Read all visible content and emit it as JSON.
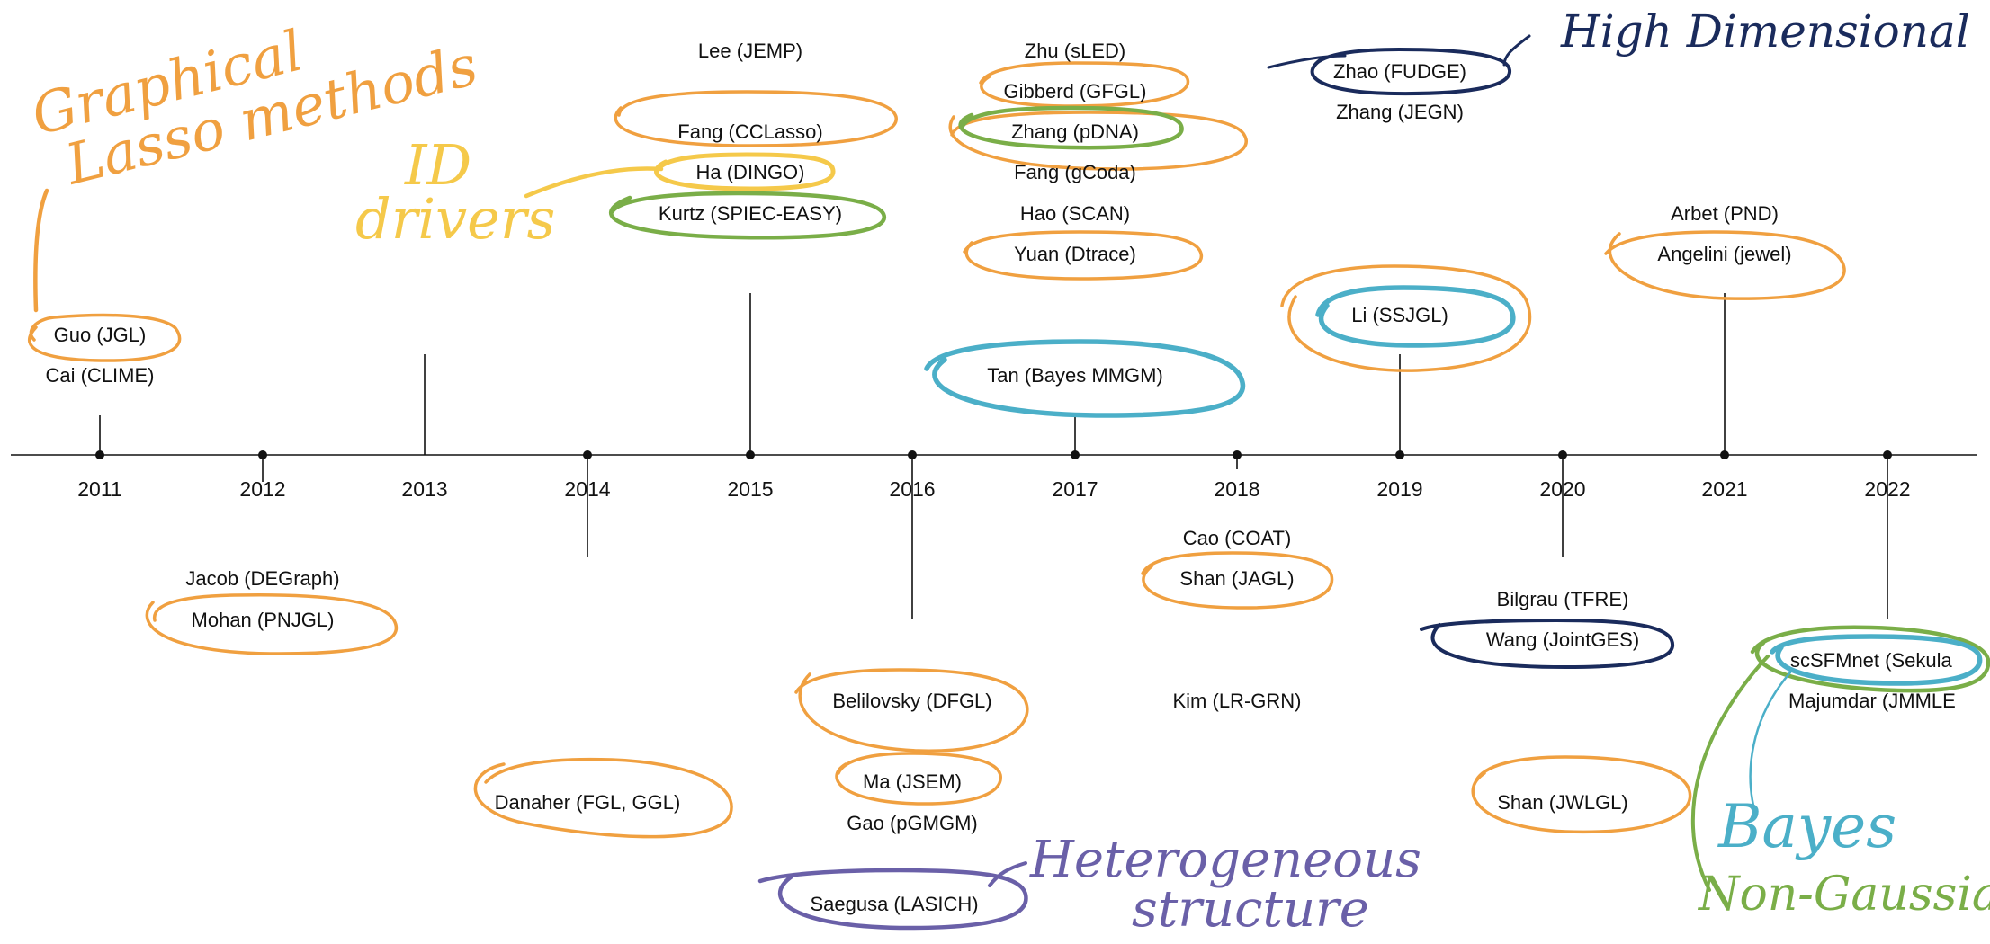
{
  "colors": {
    "graphical_lasso": "#F0A040",
    "id_drivers": "#F5C94A",
    "heterogeneous": "#6A60A8",
    "high_dimensional": "#1A2B5C",
    "bayes": "#4BAFC8",
    "non_gaussian": "#7AAE48",
    "axis": "#111111"
  },
  "years": [
    "2011",
    "2012",
    "2013",
    "2014",
    "2015",
    "2016",
    "2017",
    "2018",
    "2019",
    "2020",
    "2021",
    "2022"
  ],
  "papers": [
    {
      "id": "guo",
      "text": "Guo (JGL)"
    },
    {
      "id": "cai",
      "text": "Cai (CLIME)"
    },
    {
      "id": "jacob",
      "text": "Jacob (DEGraph)"
    },
    {
      "id": "mohan",
      "text": "Mohan (PNJGL)"
    },
    {
      "id": "danaher",
      "text": "Danaher (FGL, GGL)"
    },
    {
      "id": "lee",
      "text": "Lee (JEMP)"
    },
    {
      "id": "fang_cc",
      "text": "Fang (CCLasso)"
    },
    {
      "id": "ha",
      "text": "Ha (DINGO)"
    },
    {
      "id": "kurtz",
      "text": "Kurtz (SPIEC-EASY)"
    },
    {
      "id": "belilovsky",
      "text": "Belilovsky (DFGL)"
    },
    {
      "id": "ma",
      "text": "Ma (JSEM)"
    },
    {
      "id": "gao",
      "text": "Gao (pGMGM)"
    },
    {
      "id": "saegusa",
      "text": "Saegusa (LASICH)"
    },
    {
      "id": "zhu",
      "text": "Zhu (sLED)"
    },
    {
      "id": "gibberd",
      "text": "Gibberd (GFGL)"
    },
    {
      "id": "zhang_p",
      "text": "Zhang (pDNA)"
    },
    {
      "id": "fang_g",
      "text": "Fang (gCoda)"
    },
    {
      "id": "hao",
      "text": "Hao (SCAN)"
    },
    {
      "id": "yuan",
      "text": "Yuan (Dtrace)"
    },
    {
      "id": "tan",
      "text": "Tan (Bayes MMGM)"
    },
    {
      "id": "cao",
      "text": "Cao (COAT)"
    },
    {
      "id": "shan_j",
      "text": "Shan (JAGL)"
    },
    {
      "id": "kim",
      "text": "Kim (LR-GRN)"
    },
    {
      "id": "zhao",
      "text": "Zhao (FUDGE)"
    },
    {
      "id": "zhang_j",
      "text": "Zhang (JEGN)"
    },
    {
      "id": "li",
      "text": "Li (SSJGL)"
    },
    {
      "id": "bilgrau",
      "text": "Bilgrau (TFRE)"
    },
    {
      "id": "wang",
      "text": "Wang (JointGES)"
    },
    {
      "id": "shan_w",
      "text": "Shan (JWLGL)"
    },
    {
      "id": "arbet",
      "text": "Arbet (PND)"
    },
    {
      "id": "angelini",
      "text": "Angelini (jewel)"
    },
    {
      "id": "scsfm",
      "text": "scSFMnet (Sekula"
    },
    {
      "id": "majumdar",
      "text": "Majumdar (JMMLE"
    }
  ],
  "annotations": {
    "graphical_lasso_line1": "Graphical",
    "graphical_lasso_line2": "Lasso methods",
    "id_drivers_line1": "ID",
    "id_drivers_line2": "drivers",
    "heterogeneous_line1": "Heterogeneous",
    "heterogeneous_line2": "structure",
    "high_dimensional": "High Dimensional",
    "bayes": "Bayes",
    "non_gaussian": "Non-Gaussian"
  }
}
